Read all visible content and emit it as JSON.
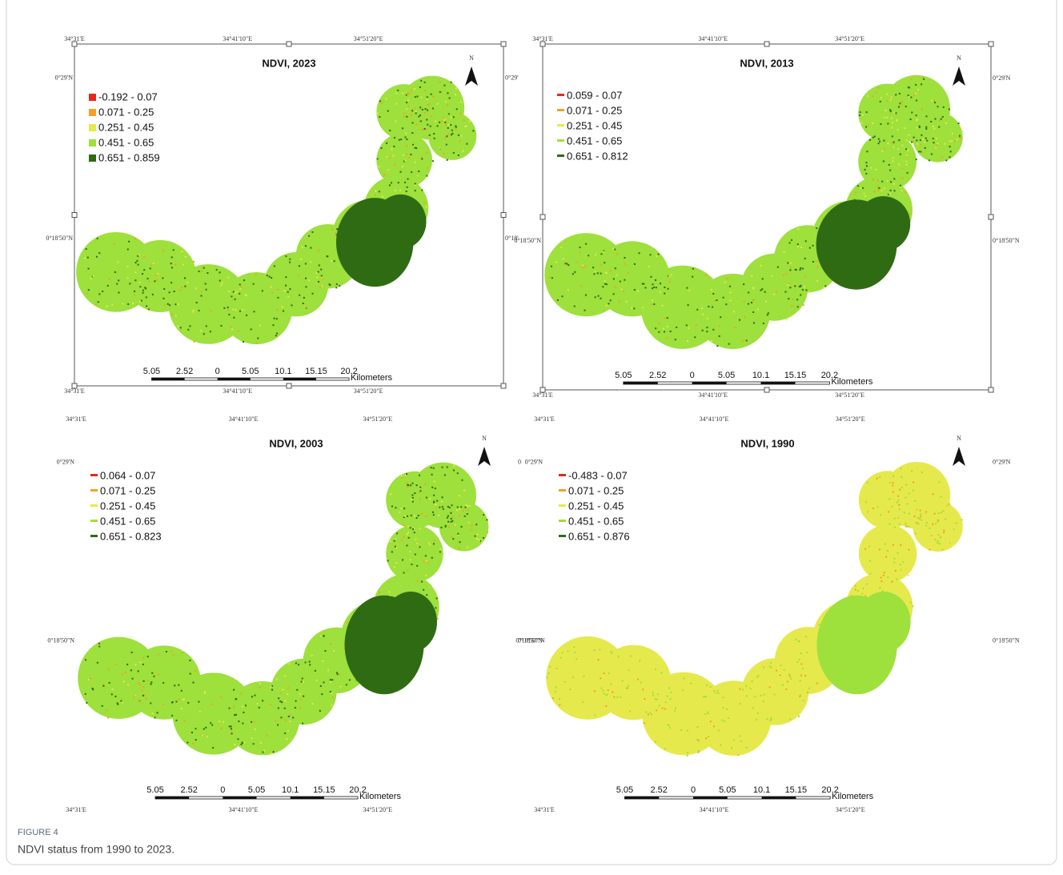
{
  "panels": [
    {
      "title": "NDVI, 2023",
      "north": "N",
      "legend": [
        {
          "label": "-0.192 - 0.07",
          "color": "#e8261c"
        },
        {
          "label": "0.071 - 0.25",
          "color": "#f4a024"
        },
        {
          "label": "0.251 - 0.45",
          "color": "#e6e94c"
        },
        {
          "label": "0.451 - 0.65",
          "color": "#9ee03c"
        },
        {
          "label": "0.651 - 0.859",
          "color": "#2f6b12"
        }
      ],
      "top_labels": [
        "34°31'E",
        "34°41'10\"E",
        "34°51'20\"E"
      ],
      "bottom_labels": [
        "34°31'E",
        "34°41'10\"E",
        "34°51'20\"E"
      ],
      "left_labels": [
        "0°29'N",
        "0°18'50\"N"
      ],
      "right_labels": [
        "0°29'",
        "0°18'"
      ],
      "scale_labels": [
        "5.05",
        "2.52",
        "0",
        "5.05",
        "10.1",
        "15.15",
        "20.2"
      ],
      "scale_unit": "Kilometers"
    },
    {
      "title": "NDVI, 2013",
      "north": "N",
      "legend": [
        {
          "label": "0.059 - 0.07",
          "color": "#e8261c"
        },
        {
          "label": "0.071 - 0.25",
          "color": "#f4a024"
        },
        {
          "label": "0.251 - 0.45",
          "color": "#e6e94c"
        },
        {
          "label": "0.451 - 0.65",
          "color": "#9ee03c"
        },
        {
          "label": "0.651 - 0.812",
          "color": "#2f6b12"
        }
      ],
      "top_labels": [
        "34°31'E",
        "34°41'10\"E",
        "34°51'20\"E"
      ],
      "bottom_labels": [
        "34°31'E",
        "34°41'10\"E",
        "34°51'20\"E"
      ],
      "left_labels": [
        "0°18'50\"N"
      ],
      "right_labels": [
        "0°29'N",
        "0°18'50\"N"
      ],
      "scale_labels": [
        "5.05",
        "2.52",
        "0",
        "5.05",
        "10.1",
        "15.15",
        "20.2"
      ],
      "scale_unit": "Kilometers"
    },
    {
      "title": "NDVI, 2003",
      "north": "N",
      "legend": [
        {
          "label": "0.064 - 0.07",
          "color": "#e8261c"
        },
        {
          "label": "0.071 - 0.25",
          "color": "#f4a024"
        },
        {
          "label": "0.251 - 0.45",
          "color": "#e6e94c"
        },
        {
          "label": "0.451 - 0.65",
          "color": "#9ee03c"
        },
        {
          "label": "0.651 - 0.823",
          "color": "#2f6b12"
        }
      ],
      "top_labels": [
        "34°31'E",
        "34°41'10\"E",
        "34°51'20\"E"
      ],
      "bottom_labels": [
        "34°31'E",
        "34°41'10\"E",
        "34°51'20\"E"
      ],
      "left_labels": [
        "0°29'N",
        "0°18'50\"N"
      ],
      "right_labels": [
        "0",
        "0°18'50\"N"
      ],
      "scale_labels": [
        "5.05",
        "2.52",
        "0",
        "5.05",
        "10.1",
        "15.15",
        "20.2"
      ],
      "scale_unit": "Kilometers"
    },
    {
      "title": "NDVI, 1990",
      "north": "N",
      "legend": [
        {
          "label": "-0.483 - 0.07",
          "color": "#e8261c"
        },
        {
          "label": "0.071 - 0.25",
          "color": "#f4a024"
        },
        {
          "label": "0.251 - 0.45",
          "color": "#e6e94c"
        },
        {
          "label": "0.451 - 0.65",
          "color": "#9ee03c"
        },
        {
          "label": "0.651 - 0.876",
          "color": "#2f6b12"
        }
      ],
      "top_labels": [
        "34°31'E",
        "34°41'10\"E",
        "34°51'20\"E"
      ],
      "bottom_labels": [
        "34°31'E",
        "34°41'10\"E",
        "34°51'20\"E"
      ],
      "left_labels": [
        "0°29'N",
        "0°18'50\"N"
      ],
      "right_labels": [
        "0°29'N",
        "0°18'50\"N"
      ],
      "scale_labels": [
        "5.05",
        "2.52",
        "0",
        "5.05",
        "10.1",
        "15.15",
        "20.2"
      ],
      "scale_unit": "Kilometers"
    }
  ],
  "caption": {
    "label": "FIGURE 4",
    "text": "NDVI status from 1990 to 2023."
  }
}
